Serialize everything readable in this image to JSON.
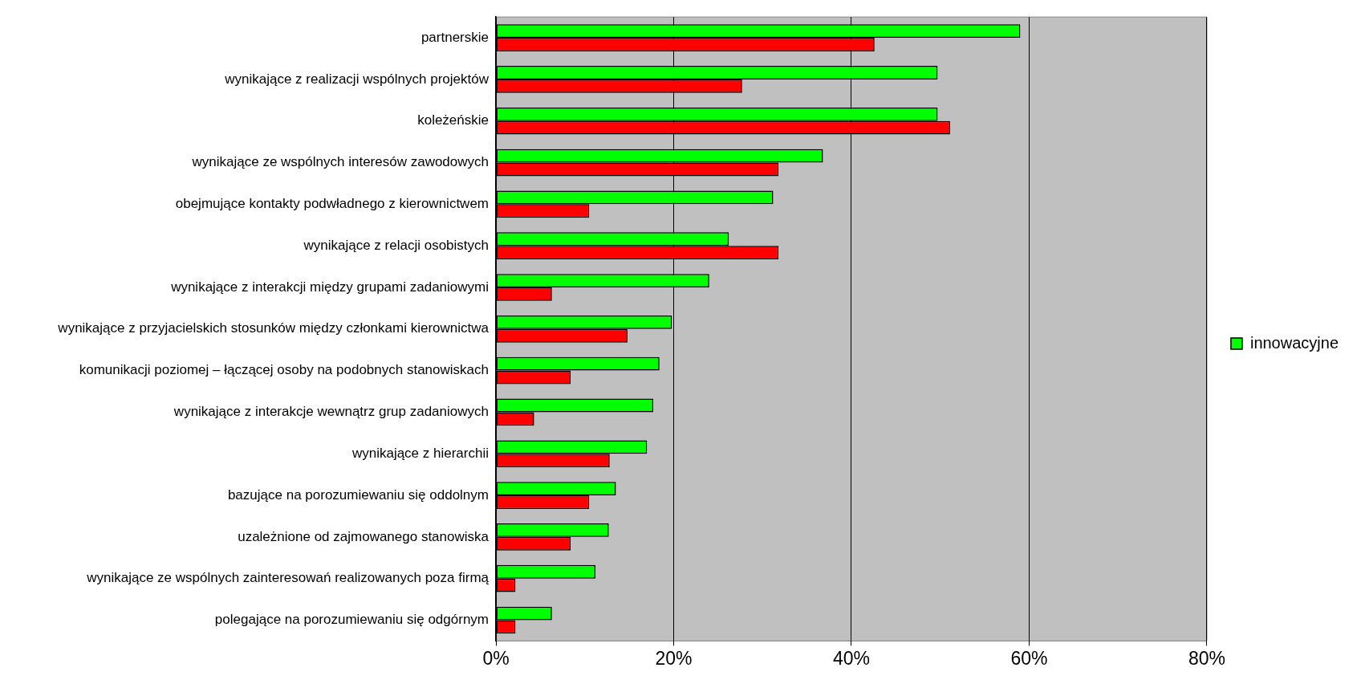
{
  "chart_data": {
    "type": "bar",
    "orientation": "horizontal",
    "categories": [
      "partnerskie",
      "wynikające z realizacji wspólnych projektów",
      "koleżeńskie",
      "wynikające ze wspólnych interesów zawodowych",
      "obejmujące kontakty podwładnego z kierownictwem",
      "wynikające z relacji osobistych",
      "wynikające z interakcji między grupami zadaniowymi",
      "wynikające z przyjacielskich stosunków między członkami kierownictwa",
      "komunikacji poziomej – łączącej osoby na podobnych stanowiskach",
      "wynikające z interakcje wewnątrz grup zadaniowych",
      "wynikające z hierarchii",
      "bazujące na porozumiewaniu się oddolnym",
      "uzależnione od zajmowanego stanowiska",
      "wynikające ze wspólnych zainteresowań realizowanych poza firmą",
      "polegające na porozumiewaniu się odgórnym"
    ],
    "series": [
      {
        "name": "innowacyjne",
        "color": "#00ff00",
        "values": [
          59.0,
          49.7,
          49.7,
          36.8,
          31.2,
          26.2,
          24.0,
          19.8,
          18.4,
          17.7,
          17.0,
          13.5,
          12.7,
          11.2,
          6.3
        ]
      },
      {
        "color": "#ff0000",
        "values": [
          42.6,
          27.7,
          51.1,
          31.8,
          10.5,
          31.8,
          6.3,
          14.8,
          8.4,
          4.3,
          12.8,
          10.5,
          8.4,
          2.2,
          2.2
        ]
      }
    ],
    "xlim": [
      0,
      80
    ],
    "xticks": [
      {
        "value": 0,
        "label": "0%"
      },
      {
        "value": 20,
        "label": "20%"
      },
      {
        "value": 40,
        "label": "40%"
      },
      {
        "value": 60,
        "label": "60%"
      },
      {
        "value": 80,
        "label": "80%"
      }
    ],
    "grid": "x",
    "legend": "right"
  }
}
